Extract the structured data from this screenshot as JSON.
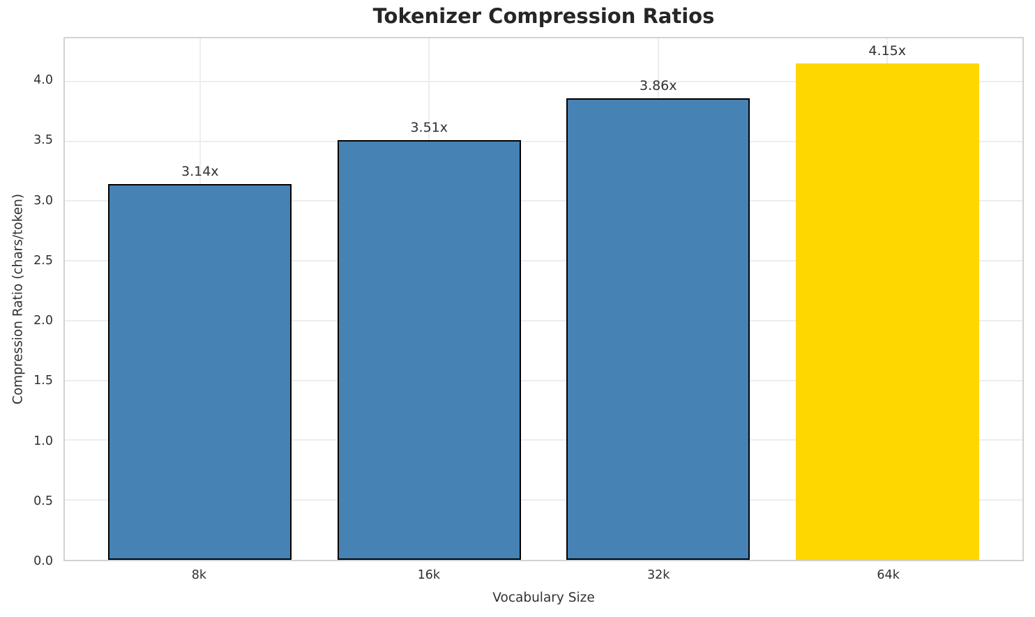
{
  "chart_data": {
    "type": "bar",
    "title": "Tokenizer Compression Ratios",
    "xlabel": "Vocabulary Size",
    "ylabel": "Compression Ratio (chars/token)",
    "categories": [
      "8k",
      "16k",
      "32k",
      "64k"
    ],
    "values": [
      3.14,
      3.51,
      3.86,
      4.15
    ],
    "value_labels": [
      "3.14x",
      "3.51x",
      "3.86x",
      "4.15x"
    ],
    "bar_colors": [
      "#4682b4",
      "#4682b4",
      "#4682b4",
      "#ffd700"
    ],
    "bar_edge_colors": [
      "#000000",
      "#000000",
      "#000000",
      "none"
    ],
    "ylim": [
      0,
      4.36
    ],
    "yticks": [
      0,
      0.5,
      1,
      1.5,
      2,
      2.5,
      3,
      3.5,
      4
    ],
    "ytick_labels": [
      "0.0",
      "0.5",
      "1.0",
      "1.5",
      "2.0",
      "2.5",
      "3.0",
      "3.5",
      "4.0"
    ],
    "grid": "on",
    "legend": "none"
  },
  "colors": {
    "bar_blue": "#4682b4",
    "bar_gold": "#ffd700",
    "grid": "#ededed",
    "spine": "#d2d2d2",
    "title_text": "#262626",
    "tick_text": "#303030",
    "background": "#ffffff"
  }
}
